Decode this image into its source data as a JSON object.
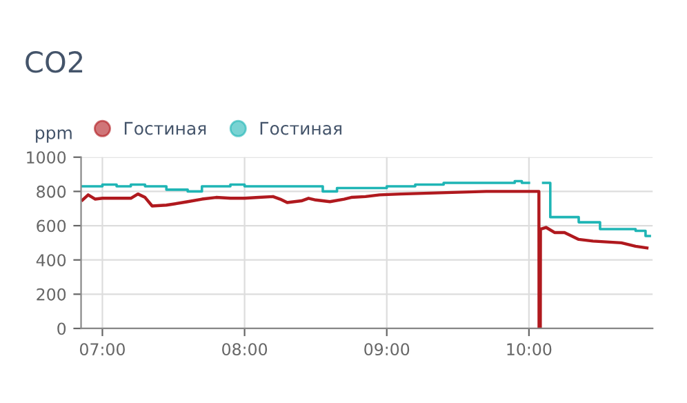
{
  "chart_data": {
    "type": "line",
    "title": "CO2",
    "ylabel": "ppm",
    "legend": "top left",
    "grid": true,
    "marker": "none",
    "xlim": [
      6.85,
      10.87
    ],
    "ylim": [
      0,
      1000
    ],
    "yticks": [
      0,
      200,
      400,
      600,
      800,
      1000
    ],
    "xticks": [
      {
        "value": 7,
        "label": "07:00"
      },
      {
        "value": 8,
        "label": "08:00"
      },
      {
        "value": 9,
        "label": "09:00"
      },
      {
        "value": 10,
        "label": "10:00"
      }
    ],
    "series": [
      {
        "name": "Гостиная",
        "color": "#b0191e",
        "x": [
          6.86,
          6.9,
          6.95,
          7.0,
          7.1,
          7.2,
          7.25,
          7.3,
          7.35,
          7.45,
          7.6,
          7.7,
          7.8,
          7.9,
          8.0,
          8.1,
          8.2,
          8.25,
          8.3,
          8.4,
          8.45,
          8.5,
          8.6,
          8.7,
          8.75,
          8.85,
          8.95,
          9.1,
          9.3,
          9.5,
          9.7,
          9.9,
          10.07,
          10.071,
          10.08,
          10.081,
          10.12,
          10.18,
          10.25,
          10.35,
          10.45,
          10.55,
          10.65,
          10.75,
          10.83
        ],
        "values": [
          750,
          780,
          755,
          760,
          760,
          760,
          785,
          765,
          715,
          720,
          740,
          755,
          765,
          760,
          760,
          765,
          770,
          755,
          735,
          745,
          760,
          750,
          740,
          755,
          765,
          770,
          780,
          785,
          790,
          795,
          800,
          800,
          800,
          0,
          0,
          580,
          590,
          560,
          560,
          520,
          510,
          505,
          500,
          480,
          470
        ]
      },
      {
        "name": "Гостиная",
        "color": "#1fb5b5",
        "type": "step",
        "x": [
          6.86,
          7.0,
          7.1,
          7.2,
          7.3,
          7.45,
          7.6,
          7.7,
          7.9,
          8.0,
          8.2,
          8.45,
          8.55,
          8.65,
          9.0,
          9.2,
          9.4,
          9.7,
          9.9,
          9.95,
          10.0,
          10.1,
          10.15,
          10.35,
          10.5,
          10.75,
          10.82,
          10.85
        ],
        "values": [
          830,
          840,
          830,
          840,
          830,
          810,
          800,
          830,
          840,
          830,
          830,
          830,
          800,
          820,
          830,
          840,
          850,
          850,
          860,
          850,
          null,
          850,
          650,
          620,
          580,
          570,
          540,
          540
        ]
      }
    ]
  }
}
